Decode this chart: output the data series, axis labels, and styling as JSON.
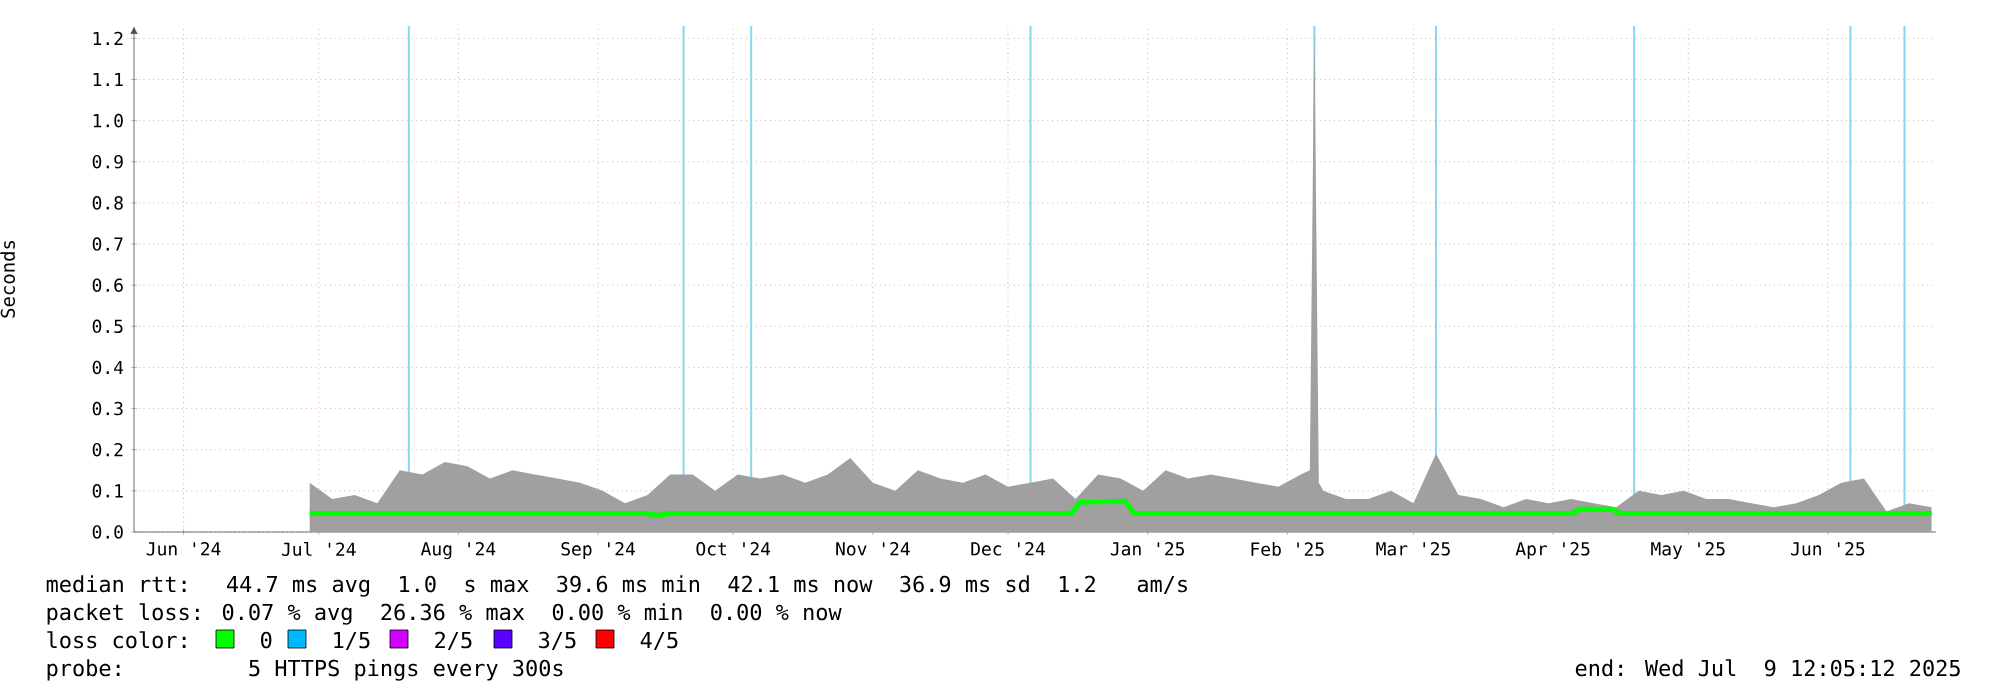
{
  "chart_data": {
    "type": "area",
    "ylabel": "Seconds",
    "xlim": [
      "2024-06-04",
      "2025-07-09"
    ],
    "xticks": [
      {
        "value": "2024-06-15",
        "label": "Jun '24"
      },
      {
        "value": "2024-07-15",
        "label": "Jul '24"
      },
      {
        "value": "2024-08-15",
        "label": "Aug '24"
      },
      {
        "value": "2024-09-15",
        "label": "Sep '24"
      },
      {
        "value": "2024-10-15",
        "label": "Oct '24"
      },
      {
        "value": "2024-11-15",
        "label": "Nov '24"
      },
      {
        "value": "2024-12-15",
        "label": "Dec '24"
      },
      {
        "value": "2025-01-15",
        "label": "Jan '25"
      },
      {
        "value": "2025-02-15",
        "label": "Feb '25"
      },
      {
        "value": "2025-03-15",
        "label": "Mar '25"
      },
      {
        "value": "2025-04-15",
        "label": "Apr '25"
      },
      {
        "value": "2025-05-15",
        "label": "May '25"
      },
      {
        "value": "2025-06-15",
        "label": "Jun '25"
      }
    ],
    "ylim": [
      0,
      1.23
    ],
    "yticks": [
      {
        "value": 0,
        "label": "0.0"
      },
      0.1,
      0.2,
      0.3,
      0.4,
      0.5,
      0.6,
      0.7,
      0.8,
      0.9,
      {
        "value": 1,
        "label": "1.0"
      },
      1.1,
      1.2
    ],
    "grid": true,
    "marker": "none",
    "series": [
      {
        "color": "#a0a0a0",
        "x": [
          "2024-07-13",
          "2024-07-18",
          "2024-07-23",
          "2024-07-28",
          "2024-08-02",
          "2024-08-07",
          "2024-08-12",
          "2024-08-17",
          "2024-08-22",
          "2024-08-27",
          "2024-09-01",
          "2024-09-06",
          "2024-09-11",
          "2024-09-16",
          "2024-09-21",
          "2024-09-26",
          "2024-10-01",
          "2024-10-06",
          "2024-10-11",
          "2024-10-16",
          "2024-10-21",
          "2024-10-26",
          "2024-10-31",
          "2024-11-05",
          "2024-11-10",
          "2024-11-15",
          "2024-11-20",
          "2024-11-25",
          "2024-11-30",
          "2024-12-05",
          "2024-12-10",
          "2024-12-15",
          "2024-12-20",
          "2024-12-25",
          "2024-12-30",
          "2025-01-04",
          "2025-01-09",
          "2025-01-14",
          "2025-01-19",
          "2025-01-24",
          "2025-01-29",
          "2025-02-03",
          "2025-02-08",
          "2025-02-13",
          "2025-02-18",
          "2025-02-20",
          "2025-02-21",
          "2025-02-22",
          "2025-02-23",
          "2025-02-28",
          "2025-03-05",
          "2025-03-10",
          "2025-03-15",
          "2025-03-20",
          "2025-03-25",
          "2025-03-30",
          "2025-04-04",
          "2025-04-09",
          "2025-04-14",
          "2025-04-19",
          "2025-04-24",
          "2025-04-29",
          "2025-05-04",
          "2025-05-09",
          "2025-05-14",
          "2025-05-19",
          "2025-05-24",
          "2025-05-29",
          "2025-06-03",
          "2025-06-08",
          "2025-06-13",
          "2025-06-18",
          "2025-06-23",
          "2025-06-28",
          "2025-07-03",
          "2025-07-08"
        ],
        "values": [
          0.12,
          0.08,
          0.09,
          0.07,
          0.15,
          0.14,
          0.17,
          0.16,
          0.13,
          0.15,
          0.14,
          0.13,
          0.12,
          0.1,
          0.07,
          0.09,
          0.14,
          0.14,
          0.1,
          0.14,
          0.13,
          0.14,
          0.12,
          0.14,
          0.18,
          0.12,
          0.1,
          0.15,
          0.13,
          0.12,
          0.14,
          0.11,
          0.12,
          0.13,
          0.08,
          0.14,
          0.13,
          0.1,
          0.15,
          0.13,
          0.14,
          0.13,
          0.12,
          0.11,
          0.14,
          0.15,
          1.22,
          0.12,
          0.1,
          0.08,
          0.08,
          0.1,
          0.07,
          0.19,
          0.09,
          0.08,
          0.06,
          0.08,
          0.07,
          0.08,
          0.07,
          0.06,
          0.1,
          0.09,
          0.1,
          0.08,
          0.08,
          0.07,
          0.06,
          0.07,
          0.09,
          0.12,
          0.13,
          0.05,
          0.07,
          0.06
        ]
      },
      {
        "type": "line",
        "color": "#00ff00",
        "x": [
          "2024-07-13",
          "2024-09-26",
          "2024-09-28",
          "2024-10-01",
          "2024-12-29",
          "2024-12-31",
          "2025-01-10",
          "2025-01-12",
          "2025-04-19",
          "2025-04-21",
          "2025-04-28",
          "2025-04-30",
          "2025-07-08"
        ],
        "values": [
          0.045,
          0.045,
          0.04,
          0.045,
          0.045,
          0.072,
          0.075,
          0.045,
          0.045,
          0.055,
          0.055,
          0.045,
          0.045
        ]
      }
    ],
    "ref_lines": [
      {
        "axis": "x",
        "value": "2024-08-04",
        "color": "#87d7f0"
      },
      {
        "axis": "x",
        "value": "2024-10-04",
        "color": "#87d7f0"
      },
      {
        "axis": "x",
        "value": "2024-10-19",
        "color": "#87d7f0"
      },
      {
        "axis": "x",
        "value": "2024-12-20",
        "color": "#87d7f0"
      },
      {
        "axis": "x",
        "value": "2025-02-21",
        "color": "#87d7f0"
      },
      {
        "axis": "x",
        "value": "2025-03-20",
        "color": "#87d7f0"
      },
      {
        "axis": "x",
        "value": "2025-05-03",
        "color": "#87d7f0"
      },
      {
        "axis": "x",
        "value": "2025-06-20",
        "color": "#87d7f0"
      },
      {
        "axis": "x",
        "value": "2025-07-02",
        "color": "#87d7f0"
      }
    ],
    "annotations": [
      "median rtt:  44.7 ms avg  1.0  s max  39.6 ms min  42.1 ms now  36.9 ms sd  1.2   am/s",
      "packet loss: 0.07 % avg  26.36 % max  0.00 % min  0.00 % now",
      "loss color:",
      "0",
      "1/5",
      "2/5",
      "3/5",
      "4/5",
      "probe:       5 HTTPS pings every 300s",
      "end: Wed Jul  9 12:05:12 2025"
    ]
  }
}
